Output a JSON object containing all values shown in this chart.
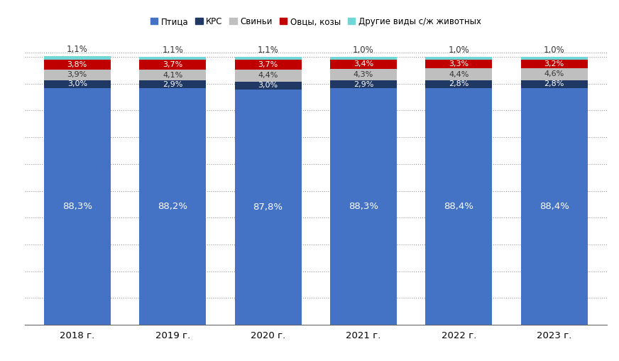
{
  "years": [
    "2018 г.",
    "2019 г.",
    "2020 г.",
    "2021 г.",
    "2022 г.",
    "2023 г."
  ],
  "series": {
    "Птица": [
      88.3,
      88.2,
      87.8,
      88.3,
      88.4,
      88.4
    ],
    "КРС": [
      3.0,
      2.9,
      3.0,
      2.9,
      2.8,
      2.8
    ],
    "Свиньи": [
      3.9,
      4.1,
      4.4,
      4.3,
      4.4,
      4.6
    ],
    "Овцы, козы": [
      3.8,
      3.7,
      3.7,
      3.4,
      3.3,
      3.2
    ],
    "Другие виды с/ж животных": [
      1.1,
      1.1,
      1.1,
      1.0,
      1.0,
      1.0
    ]
  },
  "colors": {
    "Птица": "#4472C4",
    "КРС": "#1F3864",
    "Свиньи": "#BFBFBF",
    "Овцы, козы": "#C00000",
    "Другие виды с/ж животных": "#70D6D6"
  },
  "bar_labels": {
    "Птица": [
      "88,3%",
      "88,2%",
      "87,8%",
      "88,3%",
      "88,4%",
      "88,4%"
    ],
    "КРС": [
      "3,0%",
      "2,9%",
      "3,0%",
      "2,9%",
      "2,8%",
      "2,8%"
    ],
    "Свиньи": [
      "3,9%",
      "4,1%",
      "4,4%",
      "4,3%",
      "4,4%",
      "4,6%"
    ],
    "Овцы, козы": [
      "3,8%",
      "3,7%",
      "3,7%",
      "3,4%",
      "3,3%",
      "3,2%"
    ],
    "Другие виды с/ж животных": [
      "1,1%",
      "1,1%",
      "1,1%",
      "1,0%",
      "1,0%",
      "1,0%"
    ]
  },
  "ylim": [
    0,
    105
  ],
  "background_color": "#FFFFFF",
  "grid_color": "#999999",
  "text_color_light": "#FFFFFF",
  "text_color_dark": "#333333",
  "bar_width": 0.7,
  "legend_order": [
    "Птица",
    "КРС",
    "Свиньи",
    "Овцы, козы",
    "Другие виды с/ж животных"
  ],
  "series_order": [
    "Птица",
    "КРС",
    "Свиньи",
    "Овцы, козы",
    "Другие виды с/ж животных"
  ]
}
